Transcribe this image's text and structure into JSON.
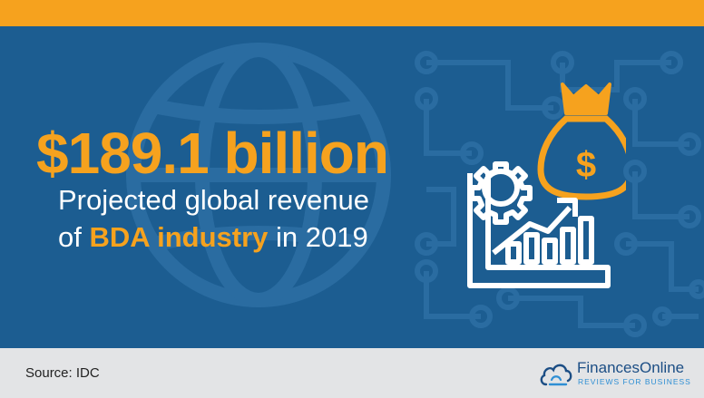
{
  "headline": {
    "amount": "$189.1 billion",
    "line1": "Projected global revenue",
    "line2_pre": "of ",
    "line2_highlight": "BDA industry",
    "line2_post": " in 2019"
  },
  "footer": {
    "source": "Source: IDC",
    "brand_name": "FinancesOnline",
    "brand_tagline": "REVIEWS FOR BUSINESS"
  },
  "icons": [
    "globe-icon",
    "circuit-pattern",
    "money-bag-icon",
    "dollar-sign-icon",
    "gear-icon",
    "growth-chart-icon",
    "cloud-logo-icon"
  ],
  "colors": {
    "background": "#1c5d91",
    "accent": "#f6a21e",
    "footer": "#e3e4e6",
    "brand": "#1c4e85"
  }
}
